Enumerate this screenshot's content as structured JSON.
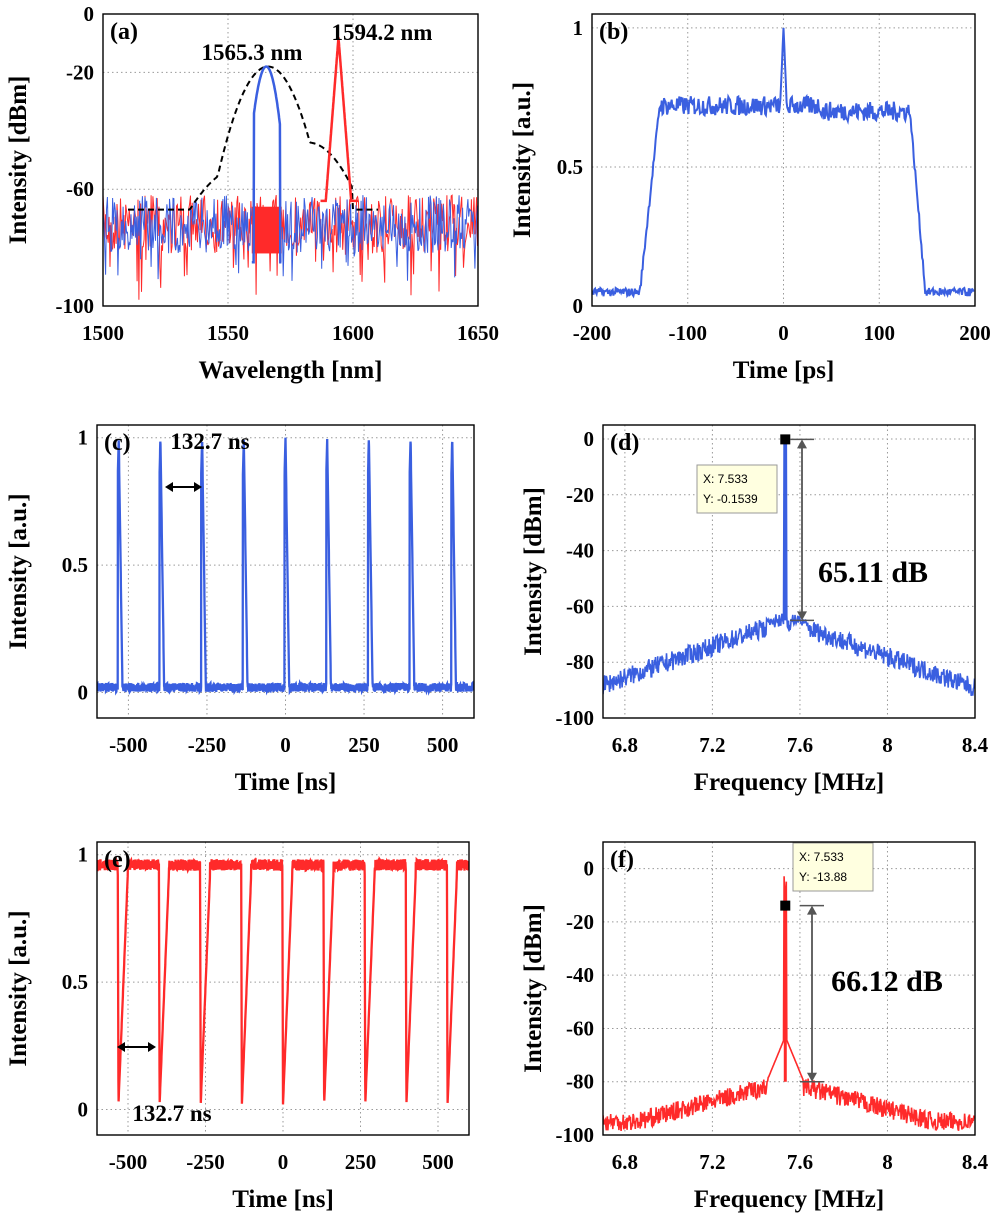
{
  "figure": {
    "colors": {
      "blue": "#3a5fe0",
      "red": "#ff2a2a",
      "black": "#000000",
      "grid": "#9a9a9a"
    }
  },
  "chart_data": [
    {
      "id": "a",
      "panel_label": "(a)",
      "type": "line",
      "xlabel": "Wavelength [nm]",
      "ylabel": "Intensity [dBm]",
      "xlim": [
        1500,
        1650
      ],
      "ylim": [
        -100,
        0
      ],
      "xticks": [
        "1500",
        "1550",
        "1600",
        "1650"
      ],
      "yticks": [
        "0",
        "-20",
        "-60",
        "-100"
      ],
      "grid": true,
      "annotations": [
        "1565.3 nm",
        "1594.2 nm"
      ],
      "series": [
        {
          "color": "black",
          "style": "dashed",
          "peak_x": 1566,
          "peak_y": -17,
          "noise_floor": -67
        },
        {
          "color": "blue",
          "peak_x": 1565.3,
          "peak_y": -18,
          "noise_floor": [
            -85,
            -62
          ]
        },
        {
          "color": "red",
          "peak_x": 1594.2,
          "peak_y": -8,
          "noise_floor": [
            -95,
            -62
          ]
        }
      ]
    },
    {
      "id": "b",
      "panel_label": "(b)",
      "type": "line",
      "xlabel": "Time [ps]",
      "ylabel": "Intensity [a.u.]",
      "xlim": [
        -200,
        200
      ],
      "ylim": [
        0,
        1.05
      ],
      "xticks": [
        "-200",
        "-100",
        "0",
        "100",
        "200"
      ],
      "yticks": [
        "0",
        "0.5",
        "1"
      ],
      "grid": true,
      "series": [
        {
          "color": "blue",
          "baseline": 0.05,
          "plateau": 0.72,
          "spike_x": 0,
          "spike_y": 1.0,
          "rise_x": -140,
          "fall_x": 140
        }
      ]
    },
    {
      "id": "c",
      "panel_label": "(c)",
      "type": "line",
      "xlabel": "Time [ns]",
      "ylabel": "Intensity [a.u.]",
      "xlim": [
        -600,
        600
      ],
      "ylim": [
        -0.1,
        1.05
      ],
      "xticks": [
        "-500",
        "-250",
        "0",
        "250",
        "500"
      ],
      "yticks": [
        "0",
        "0.5",
        "1"
      ],
      "grid": true,
      "annotations": [
        "132.7 ns"
      ],
      "series": [
        {
          "color": "blue",
          "period": 132.7,
          "pulse_positions": [
            -530.8,
            -398.1,
            -265.4,
            -132.7,
            0,
            132.7,
            265.4,
            398.1,
            530.8
          ],
          "baseline": 0.02,
          "pulse_height": 1.0
        }
      ]
    },
    {
      "id": "d",
      "panel_label": "(d)",
      "type": "line",
      "xlabel": "Frequency [MHz]",
      "ylabel": "Intensity [dBm]",
      "xlim": [
        6.7,
        8.4
      ],
      "ylim": [
        -100,
        5
      ],
      "xticks": [
        "6.8",
        "7.2",
        "7.6",
        "8",
        "8.4"
      ],
      "yticks": [
        "0",
        "-20",
        "-40",
        "-60",
        "-80",
        "-100"
      ],
      "grid": true,
      "annotations": [
        "65.11 dB"
      ],
      "datatip": {
        "x_label": "X: 7.533",
        "y_label": "Y: -0.1539",
        "x": 7.533,
        "y": -0.1539
      },
      "series": [
        {
          "color": "blue",
          "peak_x": 7.533,
          "peak_y": -0.15,
          "pedestal_y": -65,
          "floor_y": -90
        }
      ]
    },
    {
      "id": "e",
      "panel_label": "(e)",
      "type": "line",
      "xlabel": "Time [ns]",
      "ylabel": "Intensity [a.u.]",
      "xlim": [
        -600,
        600
      ],
      "ylim": [
        -0.1,
        1.05
      ],
      "xticks": [
        "-500",
        "-250",
        "0",
        "250",
        "500"
      ],
      "yticks": [
        "0",
        "0.5",
        "1"
      ],
      "grid": true,
      "annotations": [
        "132.7 ns"
      ],
      "series": [
        {
          "color": "red",
          "period": 132.7,
          "dip_positions": [
            -530.8,
            -398.1,
            -265.4,
            -132.7,
            0,
            132.7,
            265.4,
            398.1,
            530.8
          ],
          "baseline": 0.96,
          "dip_depth": 0.02
        }
      ]
    },
    {
      "id": "f",
      "panel_label": "(f)",
      "type": "line",
      "xlabel": "Frequency [MHz]",
      "ylabel": "Intensity [dBm]",
      "xlim": [
        6.7,
        8.4
      ],
      "ylim": [
        -100,
        10
      ],
      "xticks": [
        "6.8",
        "7.2",
        "7.6",
        "8",
        "8.4"
      ],
      "yticks": [
        "0",
        "-20",
        "-40",
        "-60",
        "-80",
        "-100"
      ],
      "grid": true,
      "annotations": [
        "66.12 dB"
      ],
      "datatip": {
        "x_label": "X: 7.533",
        "y_label": "Y: -13.88",
        "x": 7.533,
        "y": -13.88
      },
      "series": [
        {
          "color": "red",
          "peak_x": 7.533,
          "peak_y": -13.88,
          "pedestal_y": -80,
          "floor_y": -95
        }
      ]
    }
  ]
}
